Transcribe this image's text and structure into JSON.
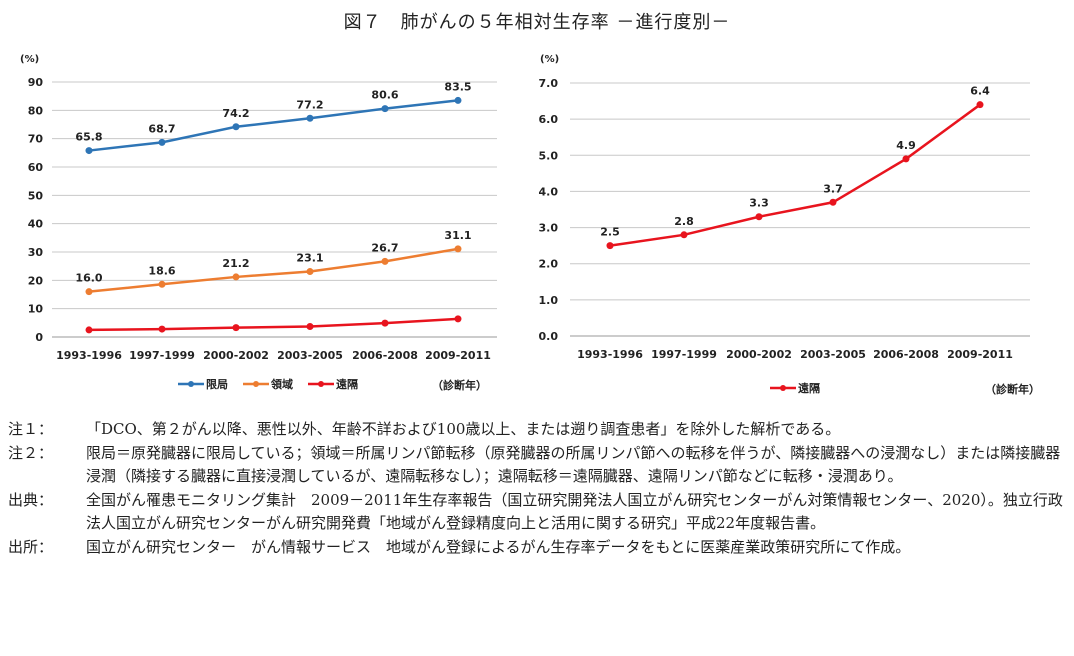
{
  "title": "図７　肺がんの５年相対生存率 －進行度別－",
  "chart_data": [
    {
      "type": "line",
      "ylabel": "(%)",
      "xlabel": "（診断年）",
      "categories": [
        "1993-1996",
        "1997-1999",
        "2000-2002",
        "2003-2005",
        "2006-2008",
        "2009-2011"
      ],
      "ylim": [
        0,
        90
      ],
      "yticks": [
        "0",
        "10",
        "20",
        "30",
        "40",
        "50",
        "60",
        "70",
        "80",
        "90"
      ],
      "grid": true,
      "legend": "bottom",
      "series": [
        {
          "name": "限局",
          "color": "#2e75b6",
          "values": [
            65.8,
            68.7,
            74.2,
            77.2,
            80.6,
            83.5
          ],
          "labels": [
            "65.8",
            "68.7",
            "74.2",
            "77.2",
            "80.6",
            "83.5"
          ]
        },
        {
          "name": "領域",
          "color": "#ed7d31",
          "values": [
            16.0,
            18.6,
            21.2,
            23.1,
            26.7,
            31.1
          ],
          "labels": [
            "16.0",
            "18.6",
            "21.2",
            "23.1",
            "26.7",
            "31.1"
          ]
        },
        {
          "name": "遠隔",
          "color": "#e8141e",
          "values": [
            2.5,
            2.8,
            3.3,
            3.7,
            4.9,
            6.4
          ],
          "labels": []
        }
      ]
    },
    {
      "type": "line",
      "ylabel": "(%)",
      "xlabel": "（診断年）",
      "categories": [
        "1993-1996",
        "1997-1999",
        "2000-2002",
        "2003-2005",
        "2006-2008",
        "2009-2011"
      ],
      "ylim": [
        0,
        7
      ],
      "yticks": [
        "0.0",
        "1.0",
        "2.0",
        "3.0",
        "4.0",
        "5.0",
        "6.0",
        "7.0"
      ],
      "grid": true,
      "legend": "bottom",
      "series": [
        {
          "name": "遠隔",
          "color": "#e8141e",
          "values": [
            2.5,
            2.8,
            3.3,
            3.7,
            4.9,
            6.4
          ],
          "labels": [
            "2.5",
            "2.8",
            "3.3",
            "3.7",
            "4.9",
            "6.4"
          ]
        }
      ]
    }
  ],
  "notes": [
    {
      "label": "注１：",
      "text": "「DCO、第２がん以降、悪性以外、年齢不詳および100歳以上、または遡り調査患者」を除外した解析である。"
    },
    {
      "label": "注２：",
      "text": "限局＝原発臓器に限局している；領域＝所属リンパ節転移（原発臓器の所属リンパ節への転移を伴うが、隣接臓器への浸潤なし）または隣接臓器浸潤（隣接する臓器に直接浸潤しているが、遠隔転移なし）；遠隔転移＝遠隔臓器、遠隔リンパ節などに転移・浸潤あり。"
    },
    {
      "label": "出典：",
      "text": "全国がん罹患モニタリング集計　2009－2011年生存率報告（国立研究開発法人国立がん研究センターがん対策情報センター、2020）。独立行政法人国立がん研究センターがん研究開発費「地域がん登録精度向上と活用に関する研究」平成22年度報告書。"
    },
    {
      "label": "出所：",
      "text": "国立がん研究センター　がん情報サービス　地域がん登録によるがん生存率データをもとに医薬産業政策研究所にて作成。"
    }
  ]
}
